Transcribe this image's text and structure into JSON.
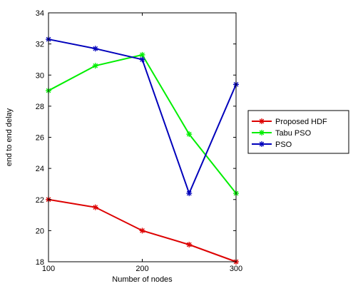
{
  "chart_data": {
    "type": "line",
    "title": "",
    "xlabel": "Number of nodes",
    "ylabel": "end to end delay",
    "x": [
      100,
      150,
      200,
      250,
      300
    ],
    "xlim": [
      100,
      300
    ],
    "ylim": [
      18,
      34
    ],
    "xticks": [
      100,
      200,
      300
    ],
    "yticks": [
      18,
      20,
      22,
      24,
      26,
      28,
      30,
      32,
      34
    ],
    "grid": false,
    "legend_position": "right",
    "series": [
      {
        "name": "Proposed HDF",
        "color": "#dd0000",
        "marker": "asterisk",
        "values": [
          22.0,
          21.5,
          20.0,
          19.1,
          18.0
        ]
      },
      {
        "name": "Tabu PSO",
        "color": "#00ee00",
        "marker": "asterisk",
        "values": [
          29.0,
          30.6,
          31.3,
          26.2,
          22.4
        ]
      },
      {
        "name": "PSO",
        "color": "#0000bb",
        "marker": "asterisk",
        "values": [
          32.3,
          31.7,
          31.0,
          22.4,
          29.4
        ]
      }
    ]
  }
}
